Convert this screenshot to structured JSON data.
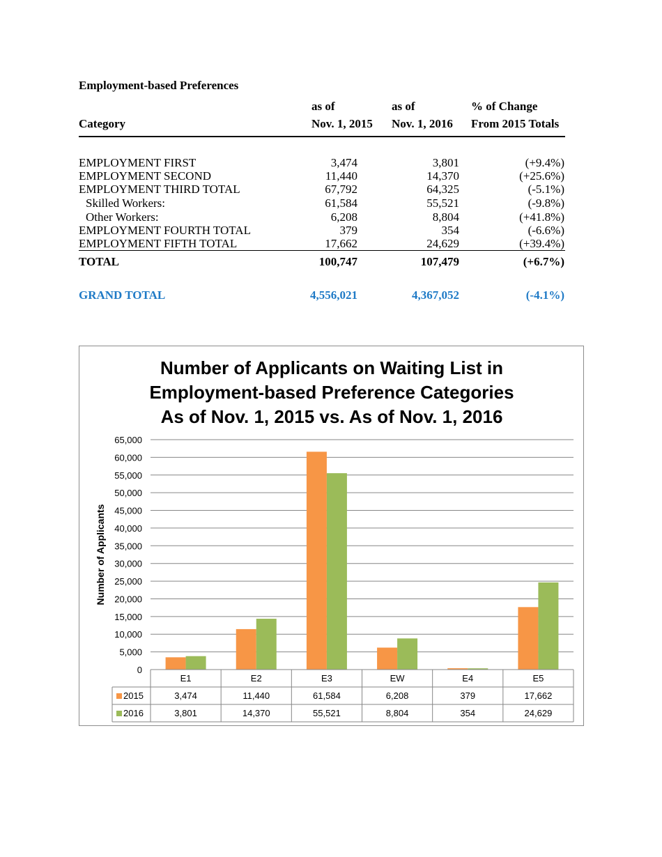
{
  "document": {
    "title": "Employment-based Preferences",
    "table": {
      "headers": [
        {
          "line1": "",
          "line2": "Category"
        },
        {
          "line1": "as of",
          "line2": "Nov. 1, 2015"
        },
        {
          "line1": "as of",
          "line2": "Nov. 1, 2016"
        },
        {
          "line1": "% of Change",
          "line2": "From 2015 Totals"
        }
      ],
      "rows": [
        {
          "category": "EMPLOYMENT FIRST",
          "v2015": "3,474",
          "v2016": "3,801",
          "change": "(+9.4%)"
        },
        {
          "category": "EMPLOYMENT SECOND",
          "v2015": "11,440",
          "v2016": "14,370",
          "change": "(+25.6%)"
        },
        {
          "category": "EMPLOYMENT THIRD TOTAL",
          "v2015": "67,792",
          "v2016": "64,325",
          "change": "(-5.1%)"
        },
        {
          "category": "Skilled Workers:",
          "v2015": "61,584",
          "v2016": "55,521",
          "change": "(-9.8%)"
        },
        {
          "category": "Other Workers:",
          "v2015": "6,208",
          "v2016": "8,804",
          "change": "(+41.8%)"
        },
        {
          "category": "EMPLOYMENT FOURTH TOTAL",
          "v2015": "379",
          "v2016": "354",
          "change": "(-6.6%)"
        },
        {
          "category": "EMPLOYMENT FIFTH TOTAL",
          "v2015": "17,662",
          "v2016": "24,629",
          "change": "(+39.4%)"
        }
      ],
      "total": {
        "category": "TOTAL",
        "v2015": "100,747",
        "v2016": "107,479",
        "change": "(+6.7%)"
      },
      "grand_total": {
        "category": "GRAND TOTAL",
        "v2015": "4,556,021",
        "v2016": "4,367,052",
        "change": "(-4.1%)"
      },
      "grand_total_color": "#1f7ac6"
    }
  },
  "chart_data": {
    "type": "bar",
    "title": [
      "Number of Applicants on Waiting List in",
      "Employment-based Preference Categories",
      "As of Nov. 1, 2015 vs. As of Nov. 1, 2016"
    ],
    "xlabel": "",
    "ylabel": "Number of Applicants",
    "ylim": [
      0,
      65000
    ],
    "ytick_step": 5000,
    "yticks": [
      "0",
      "5,000",
      "10,000",
      "15,000",
      "20,000",
      "25,000",
      "30,000",
      "35,000",
      "40,000",
      "45,000",
      "50,000",
      "55,000",
      "60,000",
      "65,000"
    ],
    "grid": true,
    "legend": "data-table",
    "categories": [
      "E1",
      "E2",
      "E3",
      "EW",
      "E4",
      "E5"
    ],
    "series": [
      {
        "name": "2015",
        "color": "#f79646",
        "values": [
          3474,
          11440,
          61584,
          6208,
          379,
          17662
        ],
        "labels": [
          "3,474",
          "11,440",
          "61,584",
          "6,208",
          "379",
          "17,662"
        ]
      },
      {
        "name": "2016",
        "color": "#9bbb59",
        "values": [
          3801,
          14370,
          55521,
          8804,
          354,
          24629
        ],
        "labels": [
          "3,801",
          "14,370",
          "55,521",
          "8,804",
          "354",
          "24,629"
        ]
      }
    ]
  }
}
